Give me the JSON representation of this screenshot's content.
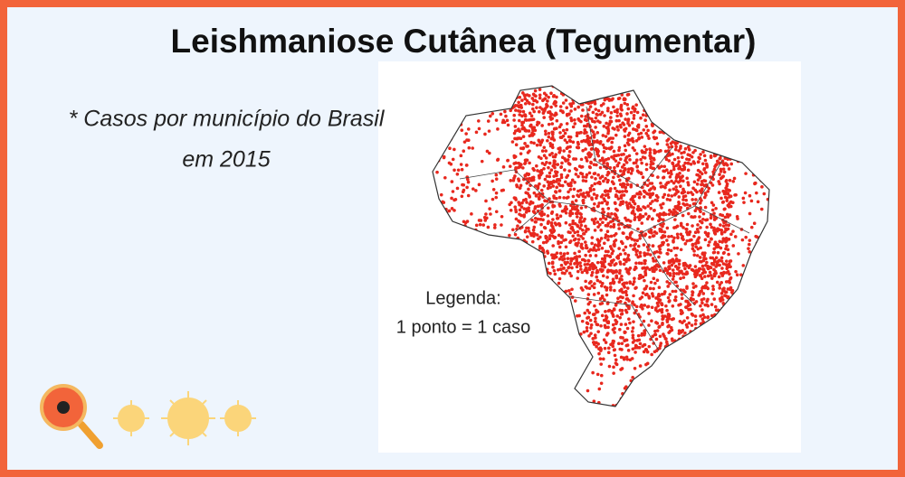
{
  "header": {
    "title": "Leishmaniose  Cutânea (Tegumentar)"
  },
  "subtitle": {
    "lines": [
      "* Casos por município do Brasil",
      "em 2015"
    ]
  },
  "legend": {
    "lines": [
      "Legenda:",
      "1 ponto = 1 caso"
    ]
  }
}
